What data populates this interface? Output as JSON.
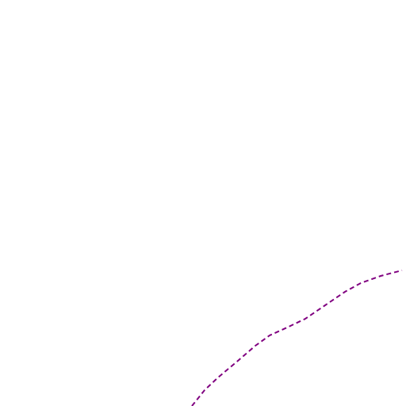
{
  "route": {
    "color": "#800080",
    "style": "dashed"
  }
}
